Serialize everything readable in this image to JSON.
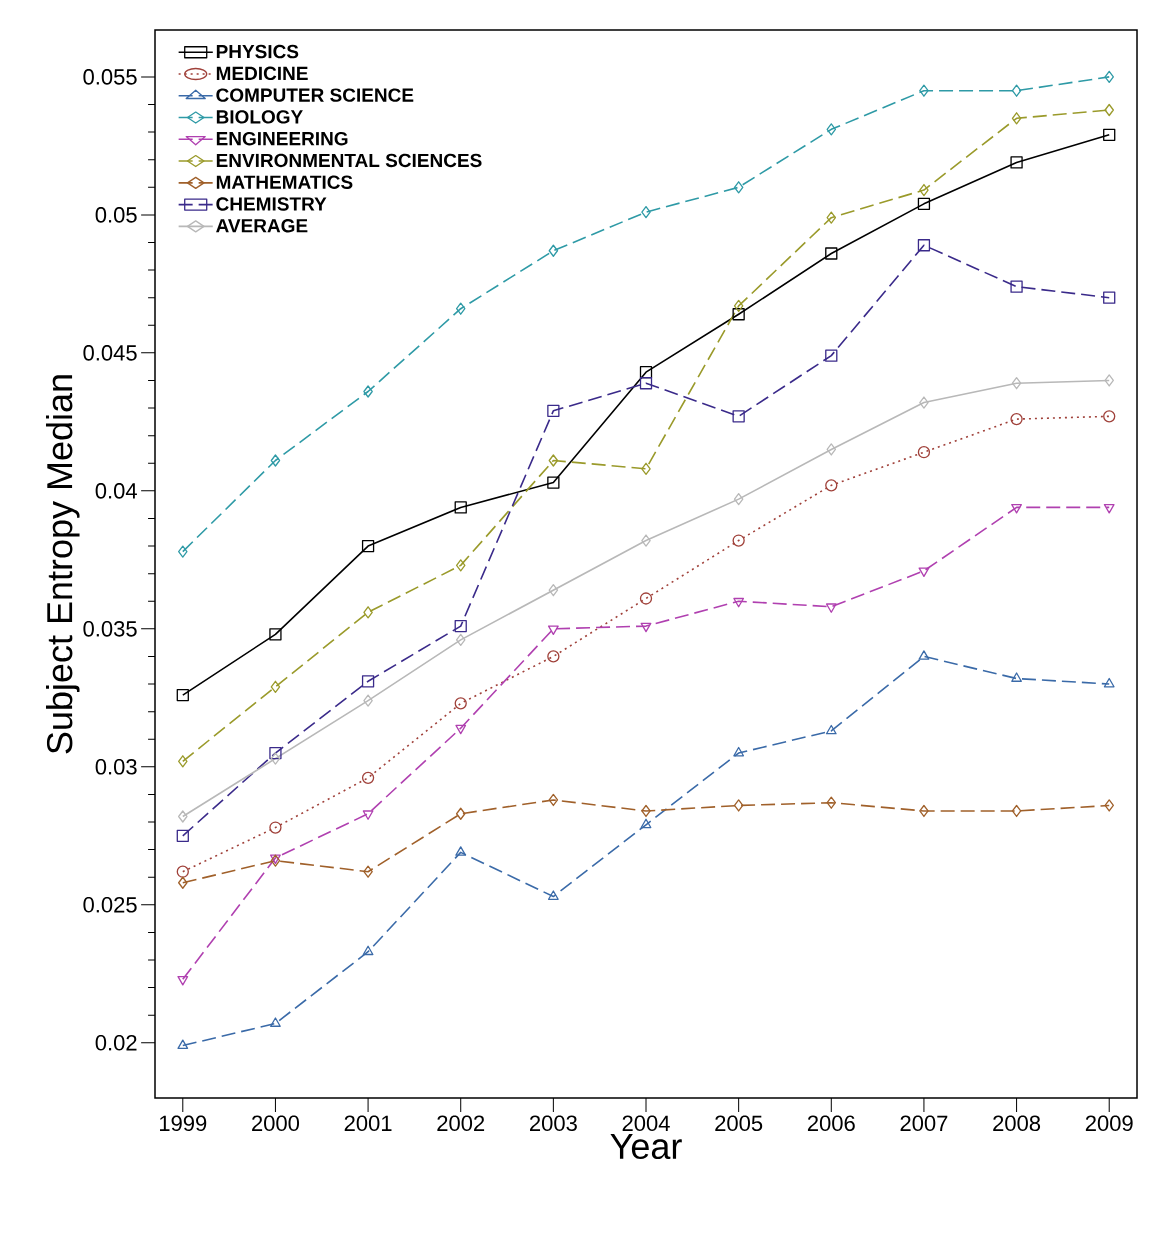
{
  "chart_data": {
    "type": "line",
    "xlabel": "Year",
    "ylabel": "Subject Entropy Median",
    "x": [
      1999,
      2000,
      2001,
      2002,
      2003,
      2004,
      2005,
      2006,
      2007,
      2008,
      2009
    ],
    "xlim": [
      1998.7,
      2009.3
    ],
    "xticks": [
      1999,
      2000,
      2001,
      2002,
      2003,
      2004,
      2005,
      2006,
      2007,
      2008,
      2009
    ],
    "ylim": [
      0.018,
      0.0567
    ],
    "yticks": [
      {
        "value": 0.02,
        "label": "0.02"
      },
      {
        "value": 0.025,
        "label": "0.025"
      },
      {
        "value": 0.03,
        "label": "0.03"
      },
      {
        "value": 0.035,
        "label": "0.035"
      },
      {
        "value": 0.04,
        "label": "0.04"
      },
      {
        "value": 0.045,
        "label": "0.045"
      },
      {
        "value": 0.05,
        "label": "0.05"
      },
      {
        "value": 0.055,
        "label": "0.055"
      }
    ],
    "grid": false,
    "legend": "top left",
    "series": [
      {
        "name": "PHYSICS",
        "color": "#000000",
        "marker": "square",
        "line_style": "solid",
        "values": [
          0.0326,
          0.0348,
          0.038,
          0.0394,
          0.0403,
          0.0443,
          0.0464,
          0.0486,
          0.0504,
          0.0519,
          0.0529
        ]
      },
      {
        "name": "MEDICINE",
        "color": "#a0413a",
        "marker": "circle",
        "line_style": "dotted",
        "values": [
          0.0262,
          0.0278,
          0.0296,
          0.0323,
          0.034,
          0.0361,
          0.0382,
          0.0402,
          0.0414,
          0.0426,
          0.0427
        ]
      },
      {
        "name": "COMPUTER SCIENCE",
        "color": "#3a6aa8",
        "marker": "triangle",
        "line_style": "dashed",
        "values": [
          0.0199,
          0.0207,
          0.0233,
          0.0269,
          0.0253,
          0.0279,
          0.0305,
          0.0313,
          0.034,
          0.0332,
          0.033
        ]
      },
      {
        "name": "BIOLOGY",
        "color": "#2e9aa6",
        "marker": "diamond",
        "line_style": "dashed",
        "values": [
          0.0378,
          0.0411,
          0.0436,
          0.0466,
          0.0487,
          0.0501,
          0.051,
          0.0531,
          0.0545,
          0.0545,
          0.055
        ]
      },
      {
        "name": "ENGINEERING",
        "color": "#b040b0",
        "marker": "triangle_down",
        "line_style": "dashed",
        "values": [
          0.0223,
          0.0267,
          0.0283,
          0.0314,
          0.035,
          0.0351,
          0.036,
          0.0358,
          0.0371,
          0.0394,
          0.0394
        ]
      },
      {
        "name": "ENVIRONMENTAL SCIENCES",
        "color": "#9a9a2a",
        "marker": "diamond",
        "line_style": "dashed",
        "values": [
          0.0302,
          0.0329,
          0.0356,
          0.0373,
          0.0411,
          0.0408,
          0.0467,
          0.0499,
          0.0509,
          0.0535,
          0.0538
        ]
      },
      {
        "name": "MATHEMATICS",
        "color": "#a0602a",
        "marker": "diamond",
        "line_style": "dashed",
        "values": [
          0.0258,
          0.0266,
          0.0262,
          0.0283,
          0.0288,
          0.0284,
          0.0286,
          0.0287,
          0.0284,
          0.0284,
          0.0286
        ]
      },
      {
        "name": "CHEMISTRY",
        "color": "#3a2a8a",
        "marker": "square",
        "line_style": "dashed",
        "values": [
          0.0275,
          0.0305,
          0.0331,
          0.0351,
          0.0429,
          0.0439,
          0.0427,
          0.0449,
          0.0489,
          0.0474,
          0.047
        ]
      },
      {
        "name": "AVERAGE",
        "color": "#b8b8b8",
        "marker": "diamond",
        "line_style": "solid",
        "values": [
          0.0282,
          0.0303,
          0.0324,
          0.0346,
          0.0364,
          0.0382,
          0.0397,
          0.0415,
          0.0432,
          0.0439,
          0.044
        ]
      }
    ]
  }
}
